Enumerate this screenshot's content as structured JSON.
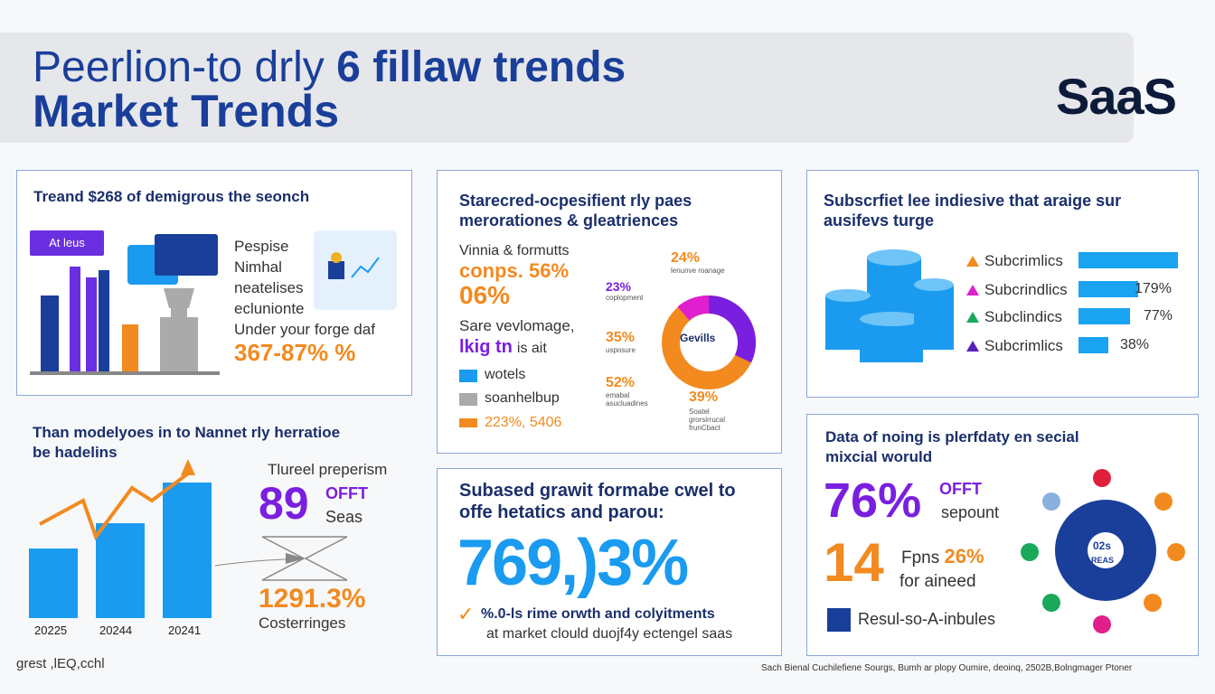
{
  "header": {
    "title_line1": "Peerlion-to drly",
    "title_line1_bold": "6 fillaw trends",
    "title_line2": "Market Trends",
    "brand": "SaaS"
  },
  "card1": {
    "heading": "Treand $268 of demigrous the seonch",
    "tag": "At leus",
    "lines": [
      "Pespise",
      "Nimhal",
      "neatelises",
      "eclunionte",
      "Under your forge daf"
    ],
    "value": "367-87% %"
  },
  "card2": {
    "heading_l1": "Starecred-ocpesifient rly paes",
    "heading_l2": "merorationes & gleatriences",
    "sub": "Vinnia & formutts",
    "pct1": "conps. 56%",
    "pct2": "06%",
    "line3": "Sare vevlomage,",
    "line4": "lkig tn",
    "line4b": "is ait",
    "legend": [
      "wotels",
      "soanhelbup",
      "223%, 5406"
    ],
    "donut_center": "Gevills",
    "labels": [
      {
        "pct": "24%",
        "desc": "lenunve roanage"
      },
      {
        "pct": "23%",
        "desc": "coplopment"
      },
      {
        "pct": "35%",
        "desc": "usposure"
      },
      {
        "pct": "52%",
        "desc": "emabal asucluadines"
      },
      {
        "pct": "39%",
        "desc": "Soatel grorsirrucal frunCbact"
      }
    ],
    "colors": {
      "orange": "#f28a1f",
      "purple": "#7a1fe0",
      "magenta": "#e01fd0"
    }
  },
  "card3": {
    "heading_l1": "Subscrfiet lee indiesive that araige sur",
    "heading_l2": "ausifevs turge",
    "rows": [
      {
        "label": "Subcrimlics",
        "value": "",
        "fraction": 1.0,
        "color": "#f28a1f"
      },
      {
        "label": "Subcrindlics",
        "value": "179%",
        "fraction": 0.6,
        "color": "#e01fd0"
      },
      {
        "label": "Subclindics",
        "value": "77%",
        "fraction": 0.52,
        "color": "#1aa85a"
      },
      {
        "label": "Subcrimlics",
        "value": "38%",
        "fraction": 0.3,
        "color": "#5a1fc0"
      }
    ]
  },
  "card4": {
    "heading_l1": "Than modelyoes in to Nannet rly herratioe",
    "heading_l2": "be hadelins",
    "years": [
      "20225",
      "20244",
      "20241"
    ],
    "bar_values": [
      0.45,
      0.62,
      0.88
    ],
    "title": "Tlureel preperism",
    "big": "89",
    "big_sup": "OFFT",
    "big_sub": "Seas",
    "pct": "1291.3%",
    "caption": "Costerringes"
  },
  "card5": {
    "heading_l1": "Subased grawit formabe cwel to",
    "heading_l2": "offe hetatics and parou:",
    "big": "769,)3%",
    "check_text": "%.0-ls rime orwth and colyitments",
    "sub": "at market clould duojf4y ectengel saas"
  },
  "card6": {
    "heading_l1": "Data of noing is plerfdaty en secial",
    "heading_l2": "mixcial woruld",
    "big1": "76%",
    "big1_sup": "OFFT",
    "big1_sub": "sepount",
    "big2": "14",
    "line_a1": "Fpns",
    "line_a2": "26%",
    "line_b": "for aineed",
    "legend": "Resul-so-A-inbules",
    "center_top": "02s",
    "center_bottom": "REAS",
    "dot_colors": [
      "#e0203a",
      "#f28a1f",
      "#f28a1f",
      "#f28a1f",
      "#e01f8a",
      "#1aa85a",
      "#1aa85a",
      "#8ab0e0"
    ]
  },
  "footer": {
    "left": "grest ,lEQ,cchl",
    "right": "Sach Bienal Cuchilefiene Sourgs, Bumh ar plopy Oumire, deoinq, 2502B,Bolngmager Ptoner"
  }
}
